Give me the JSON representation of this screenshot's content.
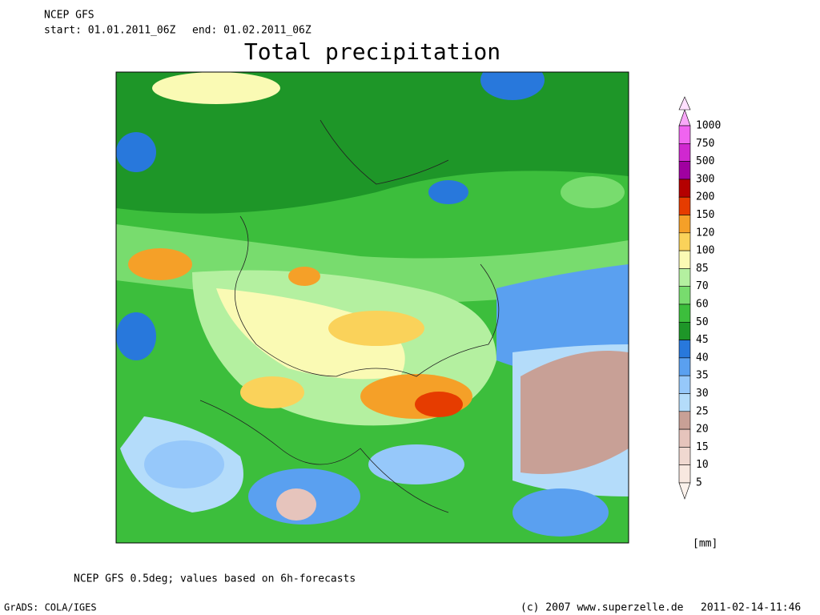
{
  "header": {
    "model": "NCEP GFS",
    "start": "start: 01.01.2011_06Z",
    "end": "end: 01.02.2011_06Z",
    "title": "Total precipitation"
  },
  "legend": {
    "unit": "[mm]",
    "levels": [
      {
        "label": "1000",
        "color": "#f8a8f8"
      },
      {
        "label": "750",
        "color": "#f064f0"
      },
      {
        "label": "500",
        "color": "#d028d0"
      },
      {
        "label": "300",
        "color": "#a000a0"
      },
      {
        "label": "200",
        "color": "#b40000"
      },
      {
        "label": "150",
        "color": "#e63c00"
      },
      {
        "label": "120",
        "color": "#f5a028"
      },
      {
        "label": "100",
        "color": "#fad25a"
      },
      {
        "label": "85",
        "color": "#fafab4"
      },
      {
        "label": "70",
        "color": "#b4f0a0"
      },
      {
        "label": "60",
        "color": "#78dc6e"
      },
      {
        "label": "50",
        "color": "#3cbe3c"
      },
      {
        "label": "45",
        "color": "#1e9628"
      },
      {
        "label": "40",
        "color": "#2878dc"
      },
      {
        "label": "35",
        "color": "#5aa0f0"
      },
      {
        "label": "30",
        "color": "#96c8fa"
      },
      {
        "label": "25",
        "color": "#b4dcfa"
      },
      {
        "label": "20",
        "color": "#c8a096"
      },
      {
        "label": "15",
        "color": "#e6c4bc"
      },
      {
        "label": "10",
        "color": "#f0d8d0"
      },
      {
        "label": "5",
        "color": "#f8e8e0"
      }
    ],
    "below_color": "#fcf2ec",
    "above_color": "#ffe0ff"
  },
  "footer": {
    "note": "NCEP GFS 0.5deg; values based on 6h-forecasts",
    "software": "GrADS: COLA/IGES",
    "copyright": "(c) 2007 www.superzelle.de",
    "timestamp": "2011-02-14-11:46"
  }
}
